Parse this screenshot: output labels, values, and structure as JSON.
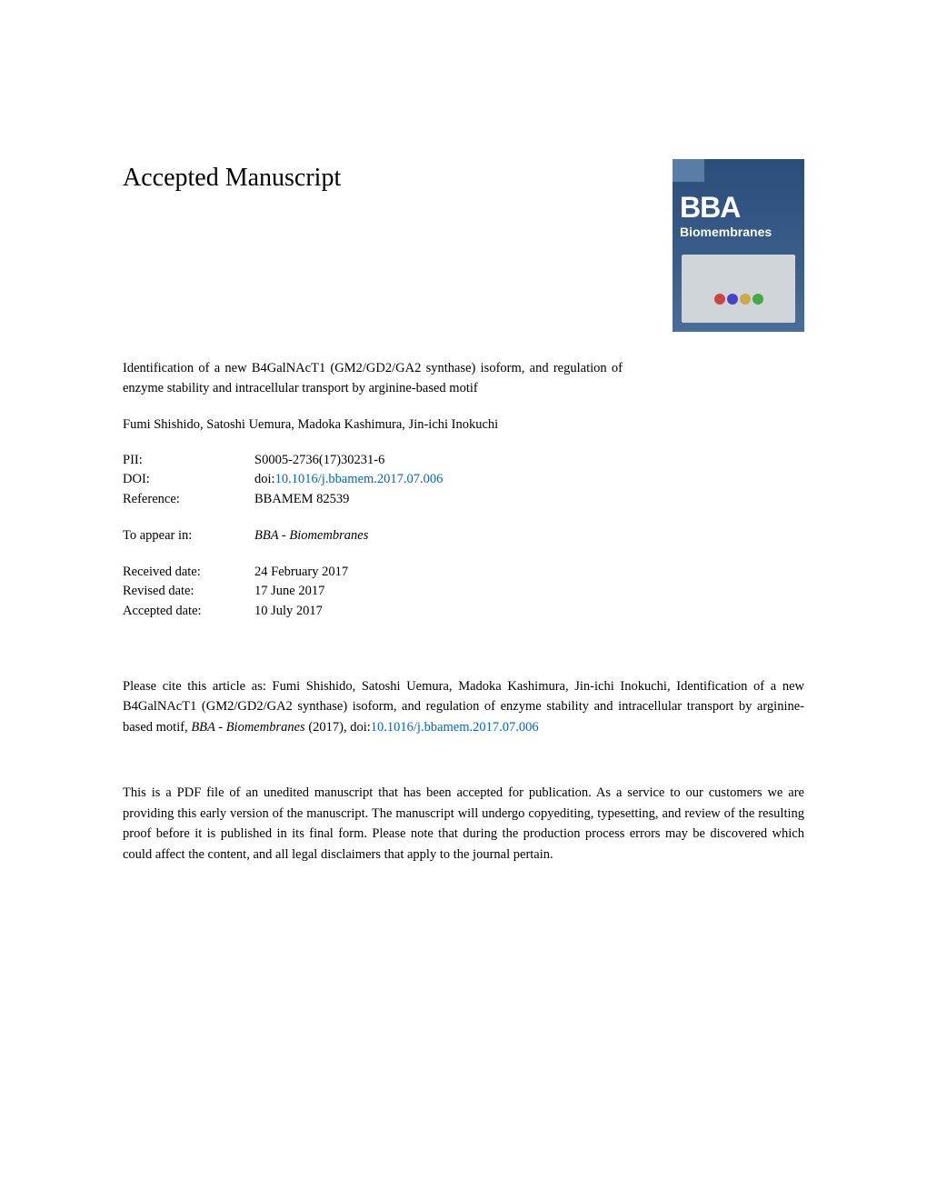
{
  "heading": "Accepted Manuscript",
  "cover": {
    "title_short": "BBA",
    "subtitle": "Biomembranes"
  },
  "article": {
    "title": "Identification of a new B4GalNAcT1 (GM2/GD2/GA2 synthase) isoform, and regulation of enzyme stability and intracellular transport by arginine-based motif",
    "authors": "Fumi Shishido, Satoshi Uemura, Madoka Kashimura, Jin-ichi Inokuchi"
  },
  "meta": {
    "pii_label": "PII:",
    "pii_value": "S0005-2736(17)30231-6",
    "doi_label": "DOI:",
    "doi_prefix": "doi:",
    "doi_value": "10.1016/j.bbamem.2017.07.006",
    "reference_label": "Reference:",
    "reference_value": "BBAMEM 82539",
    "appear_label": "To appear in:",
    "appear_value": "BBA - Biomembranes",
    "received_label": "Received date:",
    "received_value": "24 February 2017",
    "revised_label": "Revised date:",
    "revised_value": "17 June 2017",
    "accepted_label": "Accepted date:",
    "accepted_value": "10 July 2017"
  },
  "citation": {
    "prefix": "Please cite this article as: Fumi Shishido, Satoshi Uemura, Madoka Kashimura, Jin-ichi Inokuchi, Identification of a new B4GalNAcT1 (GM2/GD2/GA2 synthase) isoform, and regulation of enzyme stability and intracellular transport by arginine-based motif, ",
    "journal": "BBA - Biomembranes",
    "year": " (2017),  doi:",
    "doi_link": "10.1016/j.bbamem.2017.07.006"
  },
  "disclaimer": "This is a PDF file of an unedited manuscript that has been accepted for publication. As a service to our customers we are providing this early version of the manuscript. The manuscript will undergo copyediting, typesetting, and review of the resulting proof before it is published in its final form. Please note that during the production process errors may be discovered which could affect the content, and all legal disclaimers that apply to the journal pertain.",
  "colors": {
    "link": "#0066cc",
    "text": "#000000",
    "background": "#ffffff",
    "cover_bg": "#2a4d7a"
  },
  "typography": {
    "heading_fontsize": 28,
    "body_fontsize": 14.5,
    "font_family": "Georgia, serif"
  }
}
